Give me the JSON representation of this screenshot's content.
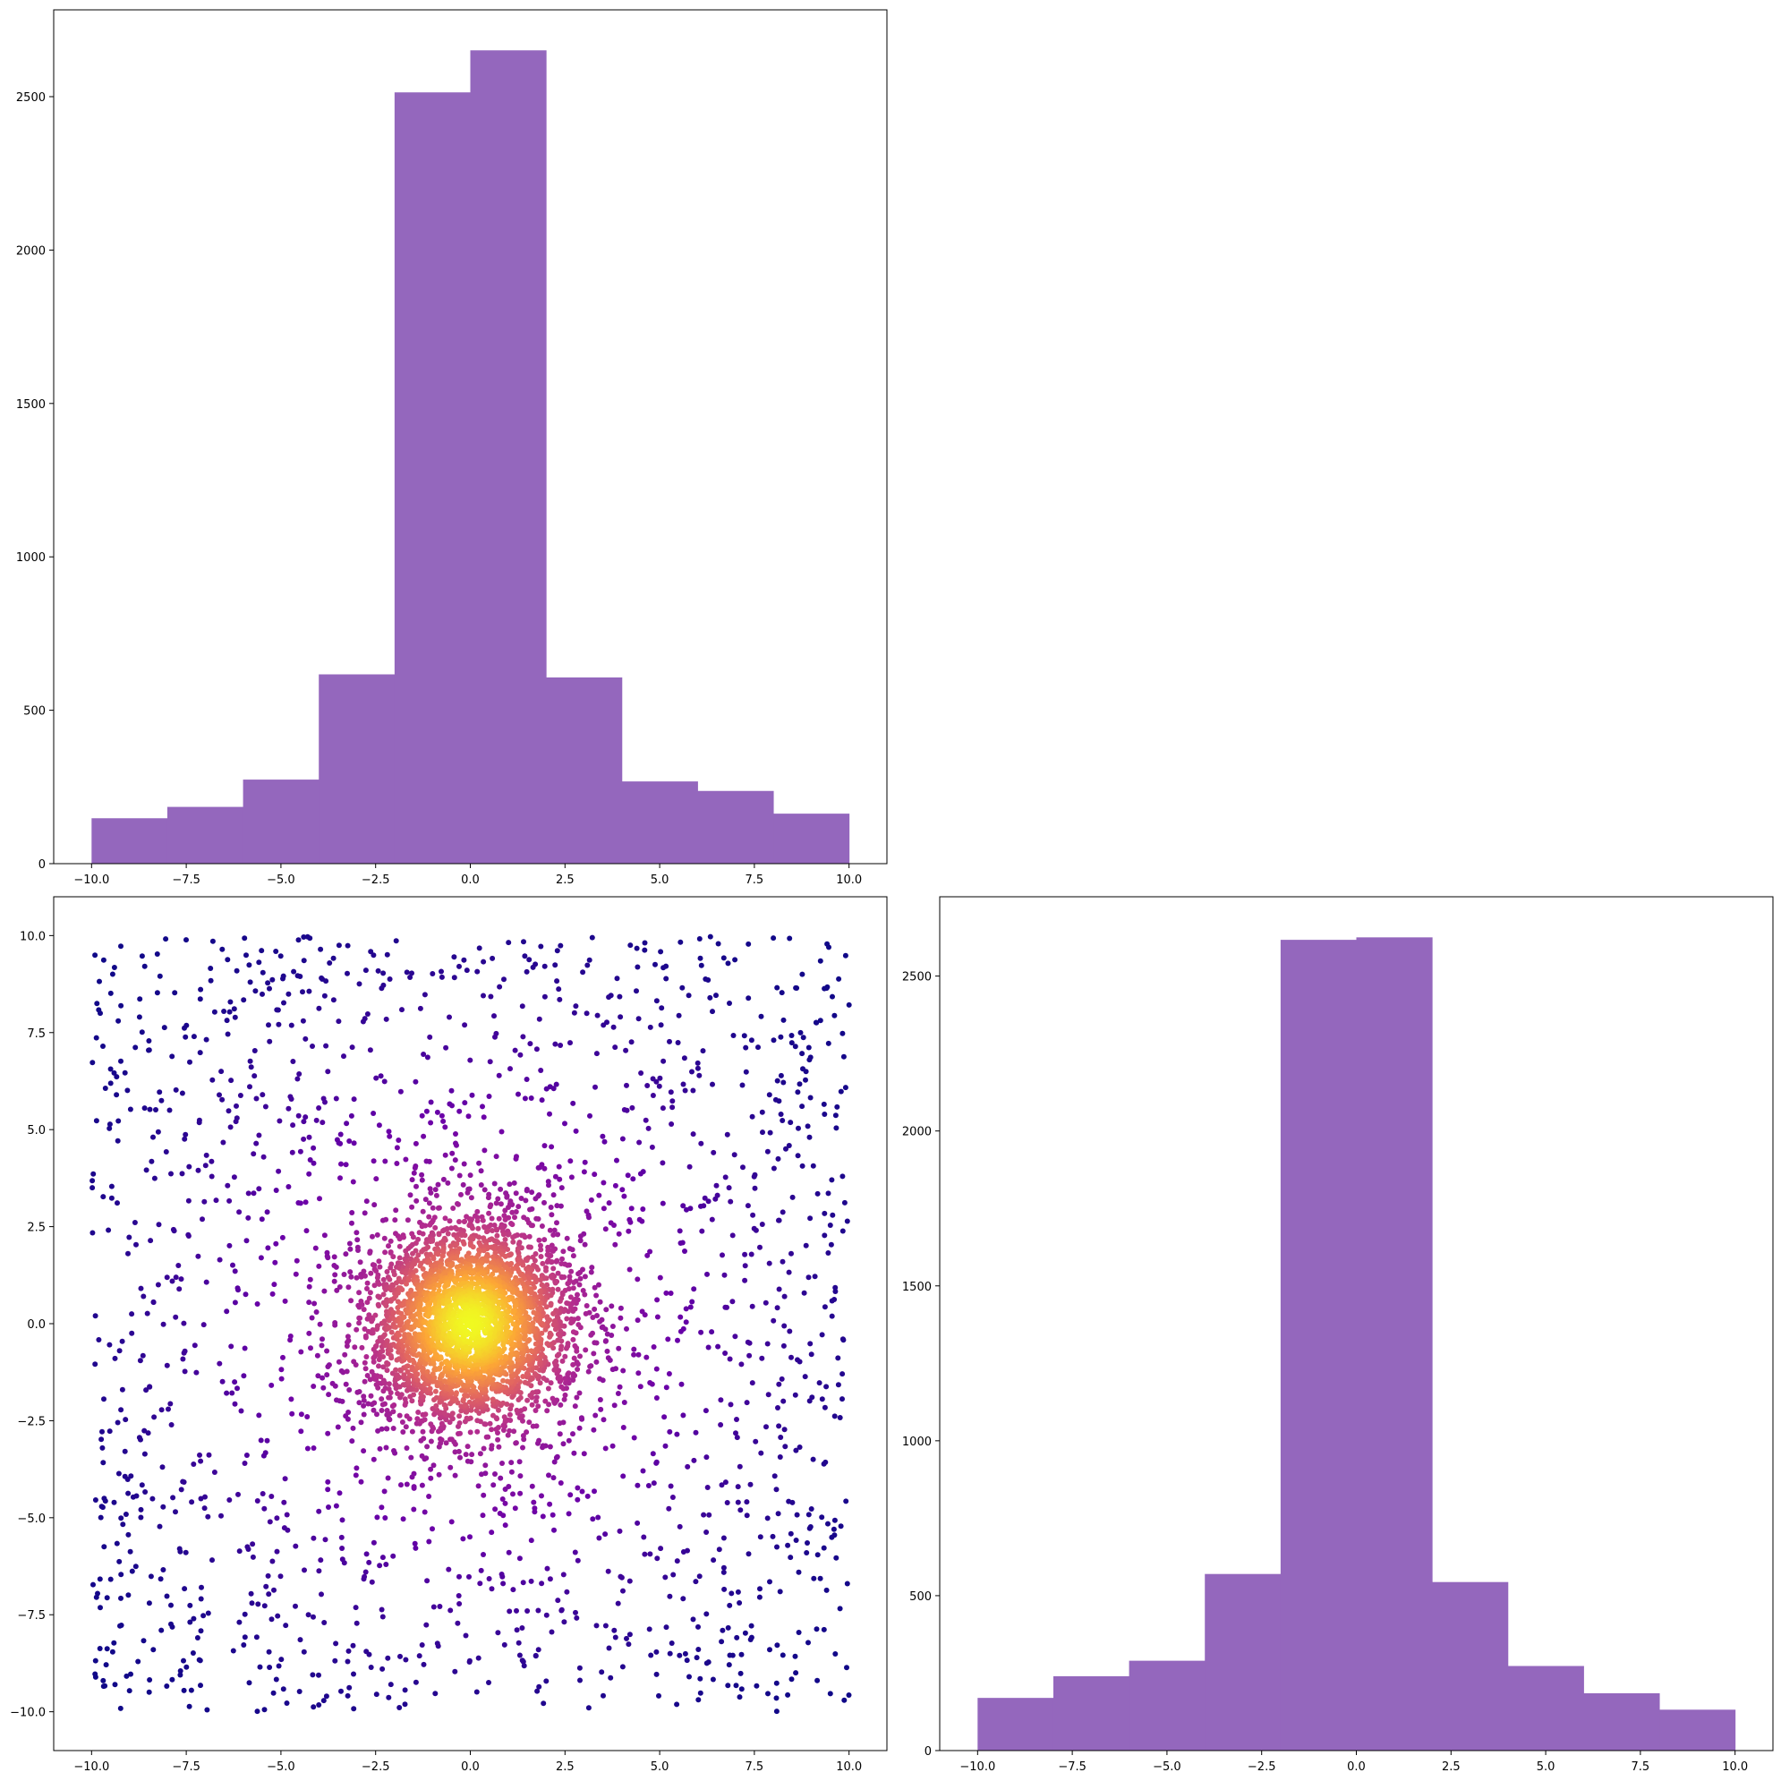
{
  "chart_data": [
    {
      "type": "bar",
      "panel": "top-left",
      "title": "",
      "xlabel": "",
      "ylabel": "",
      "bin_edges": [
        -10,
        -8,
        -6,
        -4,
        -2,
        0,
        2,
        4,
        6,
        8,
        10
      ],
      "values": [
        148,
        185,
        274,
        617,
        2514,
        2651,
        607,
        268,
        237,
        163
      ],
      "xlim": [
        -11,
        11
      ],
      "ylim": [
        0,
        2783
      ],
      "xticks": [
        -10.0,
        -7.5,
        -5.0,
        -2.5,
        0.0,
        2.5,
        5.0,
        7.5,
        10.0
      ],
      "xtick_labels": [
        "−10.0",
        "−7.5",
        "−5.0",
        "−2.5",
        "0.0",
        "2.5",
        "5.0",
        "7.5",
        "10.0"
      ],
      "yticks": [
        0,
        500,
        1000,
        1500,
        2000,
        2500
      ],
      "ytick_labels": [
        "0",
        "500",
        "1000",
        "1500",
        "2000",
        "2500"
      ],
      "bar_color": "#9467bd",
      "grid": false
    },
    {
      "type": "scatter",
      "panel": "bottom-left",
      "title": "",
      "xlabel": "",
      "ylabel": "",
      "xlim": [
        -11,
        11
      ],
      "ylim": [
        -11,
        11
      ],
      "xticks": [
        -10.0,
        -7.5,
        -5.0,
        -2.5,
        0.0,
        2.5,
        5.0,
        7.5,
        10.0
      ],
      "xtick_labels": [
        "−10.0",
        "−7.5",
        "−5.0",
        "−2.5",
        "0.0",
        "2.5",
        "5.0",
        "7.5",
        "10.0"
      ],
      "yticks": [
        -10.0,
        -7.5,
        -5.0,
        -2.5,
        0.0,
        2.5,
        5.0,
        7.5,
        10.0
      ],
      "ytick_labels": [
        "−10.0",
        "−7.5",
        "−5.0",
        "−2.5",
        "0.0",
        "2.5",
        "5.0",
        "7.5",
        "10.0"
      ],
      "point_count": 5000,
      "colormap": "plasma",
      "color_by": "density",
      "colormap_stops": [
        "#0d0887",
        "#6a00a8",
        "#b12a90",
        "#e16462",
        "#fca636",
        "#f0f921"
      ],
      "grid": false
    },
    {
      "type": "bar",
      "panel": "bottom-right",
      "title": "",
      "xlabel": "",
      "ylabel": "",
      "bin_edges": [
        -10,
        -8,
        -6,
        -4,
        -2,
        0,
        2,
        4,
        6,
        8,
        10
      ],
      "values": [
        170,
        240,
        290,
        570,
        2617,
        2625,
        544,
        273,
        185,
        132
      ],
      "xlim": [
        -11,
        11
      ],
      "ylim": [
        0,
        2756
      ],
      "xticks": [
        -10.0,
        -7.5,
        -5.0,
        -2.5,
        0.0,
        2.5,
        5.0,
        7.5,
        10.0
      ],
      "xtick_labels": [
        "−10.0",
        "−7.5",
        "−5.0",
        "−2.5",
        "0.0",
        "2.5",
        "5.0",
        "7.5",
        "10.0"
      ],
      "yticks": [
        0,
        500,
        1000,
        1500,
        2000,
        2500
      ],
      "ytick_labels": [
        "0",
        "500",
        "1000",
        "1500",
        "2000",
        "2500"
      ],
      "bar_color": "#9467bd",
      "grid": false
    }
  ]
}
